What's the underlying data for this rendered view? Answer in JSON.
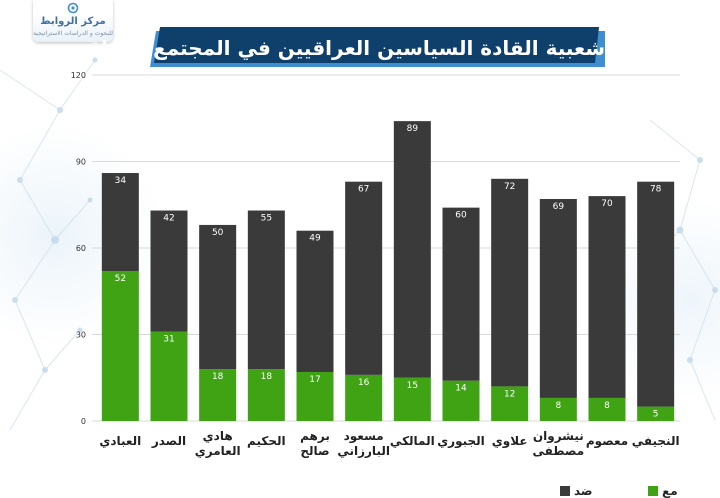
{
  "logo": {
    "name": "مركز الروابط",
    "subtitle": "للبحوث و الدراسات الاستراتيجية"
  },
  "title": "شعبية القادة السياسين العراقيين في المجتمع العراقي",
  "colors": {
    "title_bg": "#0f3f6b",
    "title_accent": "#3f8fd0",
    "against": "#3a3a3a",
    "for": "#3fa314",
    "grid": "#d9d9d9",
    "axis_text": "#333333",
    "label_text": "#ffffff",
    "category_text": "#222222"
  },
  "legend": {
    "against_label": "ضد",
    "for_label": "مع"
  },
  "chart_data": {
    "type": "bar",
    "stacked": true,
    "categories": [
      "العبادي",
      "الصدر",
      "هادي العامري",
      "الحكيم",
      "برهم صالح",
      "مسعود البارزاني",
      "المالكي",
      "الجبوري",
      "علاوي",
      "نيشروان مصطفى",
      "معصوم",
      "النجيفي"
    ],
    "series": [
      {
        "name": "مع",
        "values": [
          52,
          31,
          18,
          18,
          17,
          16,
          15,
          14,
          12,
          8,
          8,
          5
        ]
      },
      {
        "name": "ضد",
        "values": [
          34,
          42,
          50,
          55,
          49,
          67,
          89,
          60,
          72,
          69,
          70,
          78
        ]
      }
    ],
    "yticks": [
      0,
      30,
      60,
      90,
      120
    ],
    "ylim": [
      0,
      120
    ],
    "title": "شعبية القادة السياسين العراقيين في المجتمع العراقي",
    "xlabel": "",
    "ylabel": "",
    "grid": true,
    "legend_position": "bottom-right"
  }
}
